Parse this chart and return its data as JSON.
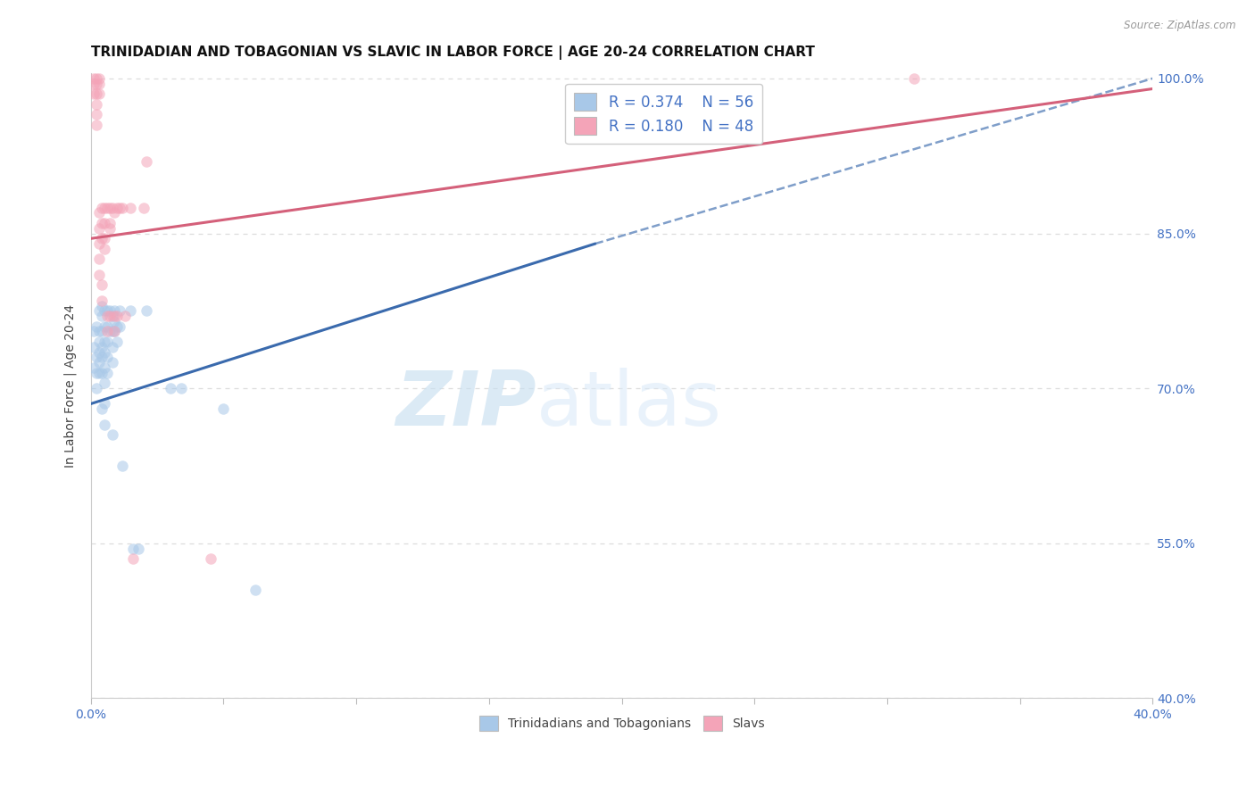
{
  "title": "TRINIDADIAN AND TOBAGONIAN VS SLAVIC IN LABOR FORCE | AGE 20-24 CORRELATION CHART",
  "source": "Source: ZipAtlas.com",
  "ylabel": "In Labor Force | Age 20-24",
  "r_blue": 0.374,
  "n_blue": 56,
  "r_pink": 0.18,
  "n_pink": 48,
  "legend_labels": [
    "Trinidadians and Tobagonians",
    "Slavs"
  ],
  "blue_color": "#a8c8e8",
  "pink_color": "#f4a4b8",
  "blue_line_color": "#3a6aad",
  "pink_line_color": "#d4607a",
  "watermark_zip": "ZIP",
  "watermark_atlas": "atlas",
  "xlim": [
    0.0,
    0.4
  ],
  "ylim": [
    0.4,
    1.005
  ],
  "y_ticks": [
    0.4,
    0.55,
    0.7,
    0.85,
    1.0
  ],
  "y_tick_labels": [
    "40.0%",
    "55.0%",
    "70.0%",
    "85.0%",
    "100.0%"
  ],
  "blue_points": [
    [
      0.001,
      0.755
    ],
    [
      0.001,
      0.74
    ],
    [
      0.001,
      0.72
    ],
    [
      0.002,
      0.76
    ],
    [
      0.002,
      0.73
    ],
    [
      0.002,
      0.715
    ],
    [
      0.002,
      0.7
    ],
    [
      0.003,
      0.775
    ],
    [
      0.003,
      0.755
    ],
    [
      0.003,
      0.745
    ],
    [
      0.003,
      0.735
    ],
    [
      0.003,
      0.725
    ],
    [
      0.003,
      0.715
    ],
    [
      0.004,
      0.78
    ],
    [
      0.004,
      0.77
    ],
    [
      0.004,
      0.755
    ],
    [
      0.004,
      0.74
    ],
    [
      0.004,
      0.73
    ],
    [
      0.004,
      0.715
    ],
    [
      0.004,
      0.68
    ],
    [
      0.005,
      0.775
    ],
    [
      0.005,
      0.76
    ],
    [
      0.005,
      0.745
    ],
    [
      0.005,
      0.735
    ],
    [
      0.005,
      0.72
    ],
    [
      0.005,
      0.705
    ],
    [
      0.005,
      0.685
    ],
    [
      0.005,
      0.665
    ],
    [
      0.006,
      0.775
    ],
    [
      0.006,
      0.76
    ],
    [
      0.006,
      0.745
    ],
    [
      0.006,
      0.73
    ],
    [
      0.006,
      0.715
    ],
    [
      0.007,
      0.775
    ],
    [
      0.007,
      0.755
    ],
    [
      0.008,
      0.77
    ],
    [
      0.008,
      0.755
    ],
    [
      0.008,
      0.74
    ],
    [
      0.008,
      0.725
    ],
    [
      0.008,
      0.655
    ],
    [
      0.009,
      0.775
    ],
    [
      0.009,
      0.765
    ],
    [
      0.009,
      0.755
    ],
    [
      0.01,
      0.76
    ],
    [
      0.01,
      0.745
    ],
    [
      0.011,
      0.775
    ],
    [
      0.011,
      0.76
    ],
    [
      0.012,
      0.625
    ],
    [
      0.015,
      0.775
    ],
    [
      0.016,
      0.545
    ],
    [
      0.018,
      0.545
    ],
    [
      0.021,
      0.775
    ],
    [
      0.03,
      0.7
    ],
    [
      0.034,
      0.7
    ],
    [
      0.05,
      0.68
    ],
    [
      0.062,
      0.505
    ]
  ],
  "pink_points": [
    [
      0.001,
      1.0
    ],
    [
      0.001,
      0.995
    ],
    [
      0.001,
      0.985
    ],
    [
      0.002,
      1.0
    ],
    [
      0.002,
      0.995
    ],
    [
      0.002,
      0.985
    ],
    [
      0.002,
      0.975
    ],
    [
      0.002,
      0.965
    ],
    [
      0.002,
      0.955
    ],
    [
      0.003,
      1.0
    ],
    [
      0.003,
      0.995
    ],
    [
      0.003,
      0.985
    ],
    [
      0.003,
      0.87
    ],
    [
      0.003,
      0.855
    ],
    [
      0.003,
      0.84
    ],
    [
      0.003,
      0.825
    ],
    [
      0.003,
      0.81
    ],
    [
      0.004,
      0.875
    ],
    [
      0.004,
      0.86
    ],
    [
      0.004,
      0.845
    ],
    [
      0.004,
      0.8
    ],
    [
      0.004,
      0.785
    ],
    [
      0.005,
      0.875
    ],
    [
      0.005,
      0.86
    ],
    [
      0.005,
      0.845
    ],
    [
      0.005,
      0.835
    ],
    [
      0.006,
      0.875
    ],
    [
      0.006,
      0.77
    ],
    [
      0.006,
      0.755
    ],
    [
      0.007,
      0.875
    ],
    [
      0.007,
      0.86
    ],
    [
      0.007,
      0.855
    ],
    [
      0.007,
      0.77
    ],
    [
      0.008,
      0.875
    ],
    [
      0.009,
      0.87
    ],
    [
      0.009,
      0.77
    ],
    [
      0.009,
      0.755
    ],
    [
      0.01,
      0.875
    ],
    [
      0.01,
      0.77
    ],
    [
      0.011,
      0.875
    ],
    [
      0.012,
      0.875
    ],
    [
      0.013,
      0.77
    ],
    [
      0.015,
      0.875
    ],
    [
      0.016,
      0.535
    ],
    [
      0.02,
      0.875
    ],
    [
      0.021,
      0.92
    ],
    [
      0.045,
      0.535
    ],
    [
      0.31,
      1.0
    ]
  ],
  "blue_solid_line": [
    [
      0.0,
      0.685
    ],
    [
      0.19,
      0.84
    ]
  ],
  "blue_dashed_line": [
    [
      0.19,
      0.84
    ],
    [
      0.4,
      1.0
    ]
  ],
  "pink_solid_line": [
    [
      0.0,
      0.845
    ],
    [
      0.4,
      0.99
    ]
  ],
  "background_color": "#ffffff",
  "grid_color": "#dddddd",
  "title_fontsize": 11,
  "axis_label_fontsize": 10,
  "tick_fontsize": 10,
  "legend_fontsize": 12,
  "marker_size": 9,
  "marker_alpha": 0.55
}
